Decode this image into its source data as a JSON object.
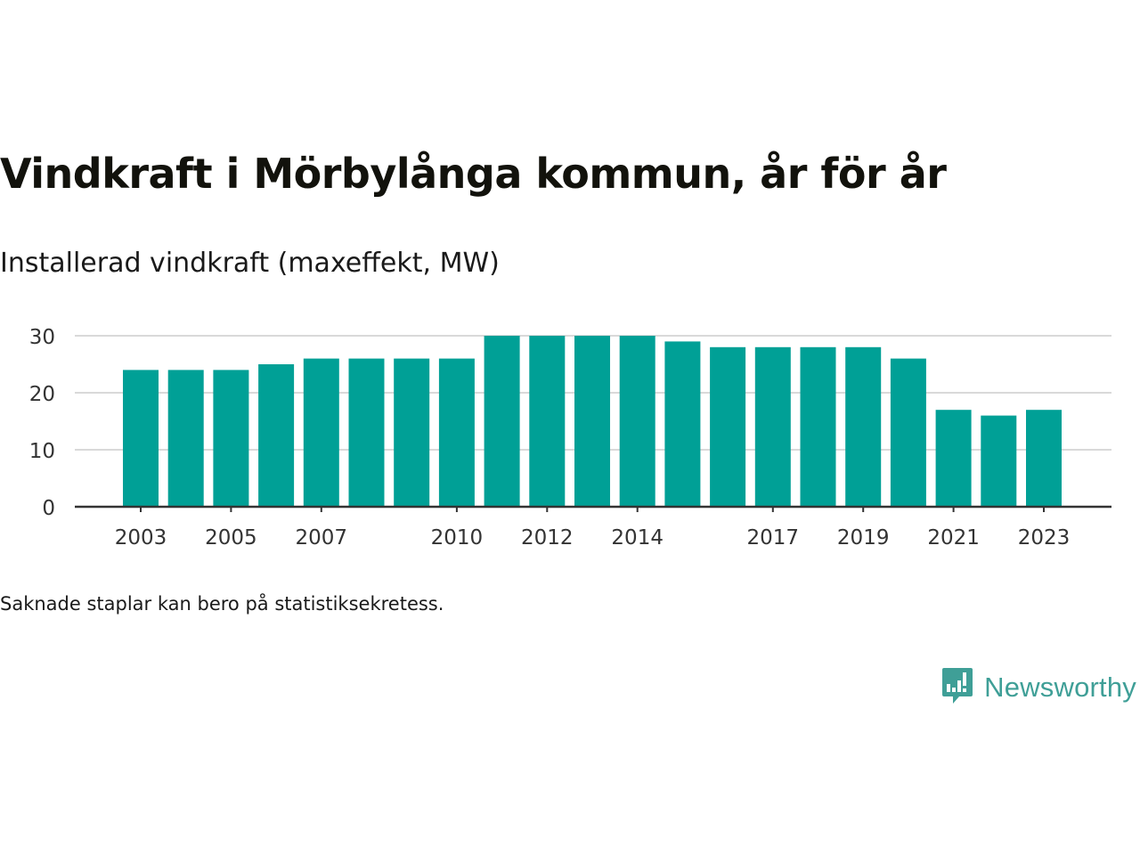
{
  "title": "Vindkraft i Mörbylånga kommun, år för år",
  "subtitle": "Installerad vindkraft (maxeffekt, MW)",
  "footnote": "Saknade staplar kan bero på statistiksekretess.",
  "logo": {
    "text": "Newsworthy",
    "icon": "bar-chart-speech-bubble-icon",
    "color": "#3f9f97"
  },
  "colors": {
    "bar": "#00a096",
    "grid": "#d9d9d9",
    "axis": "#333333"
  },
  "chart_data": {
    "type": "bar",
    "title": "Vindkraft i Mörbylånga kommun, år för år",
    "subtitle": "Installerad vindkraft (maxeffekt, MW)",
    "xlabel": "",
    "ylabel": "",
    "categories": [
      "2003",
      "2004",
      "2005",
      "2006",
      "2007",
      "2008",
      "2009",
      "2010",
      "2011",
      "2012",
      "2013",
      "2014",
      "2015",
      "2016",
      "2017",
      "2018",
      "2019",
      "2020",
      "2021",
      "2022",
      "2023"
    ],
    "values": [
      24,
      24,
      24,
      25,
      26,
      26,
      26,
      26,
      30,
      30,
      30,
      30,
      29,
      28,
      28,
      28,
      28,
      26,
      17,
      16,
      17
    ],
    "x_tick_labels": [
      "2003",
      "2005",
      "2007",
      "2010",
      "2012",
      "2014",
      "2017",
      "2019",
      "2021",
      "2023"
    ],
    "y_ticks": [
      0,
      10,
      20,
      30
    ],
    "ylim": [
      0,
      30
    ],
    "grid": "horizontal",
    "legend": "none"
  }
}
